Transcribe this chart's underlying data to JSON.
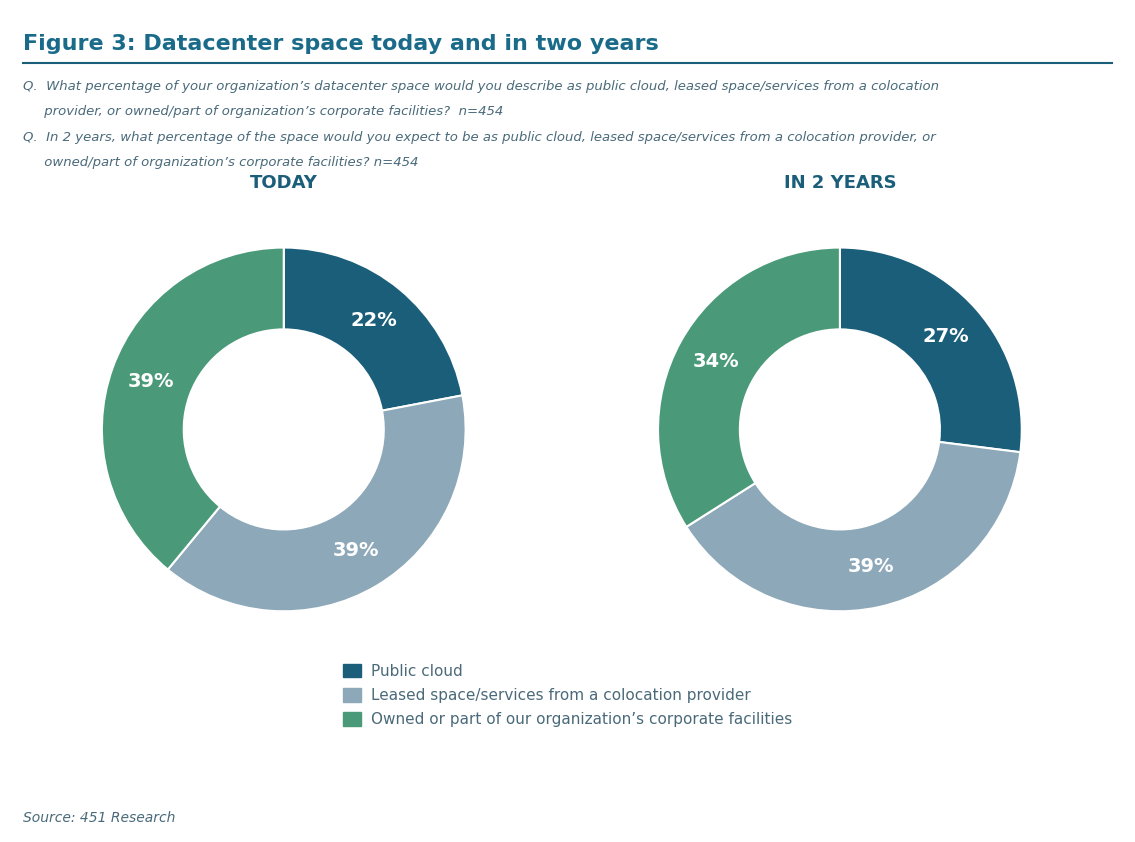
{
  "title": "Figure 3: Datacenter space today and in two years",
  "title_color": "#1a6b8a",
  "title_fontsize": 16,
  "q1_line1": "Q.  What percentage of your organization’s datacenter space would you describe as public cloud, leased space/services from a colocation",
  "q1_line2": "     provider, or owned/part of organization’s corporate facilities?  n=454",
  "q2_line1": "Q.  In 2 years, what percentage of the space would you expect to be as public cloud, leased space/services from a colocation provider, or",
  "q2_line2": "     owned/part of organization’s corporate facilities? n=454",
  "today_label": "TODAY",
  "in2years_label": "IN 2 YEARS",
  "today_values": [
    22,
    39,
    39
  ],
  "in2years_values": [
    27,
    39,
    34
  ],
  "labels": [
    "22%",
    "39%",
    "39%"
  ],
  "labels2": [
    "27%",
    "39%",
    "34%"
  ],
  "colors": [
    "#1a5e7a",
    "#8da8b8",
    "#4a9a7a"
  ],
  "legend_labels": [
    "Public cloud",
    "Leased space/services from a colocation provider",
    "Owned or part of our organization’s corporate facilities"
  ],
  "source_text": "Source: 451 Research",
  "background_color": "#ffffff",
  "text_color": "#5a7a8a",
  "question_fontsize": 10,
  "chart_label_fontsize": 12,
  "legend_fontsize": 11
}
